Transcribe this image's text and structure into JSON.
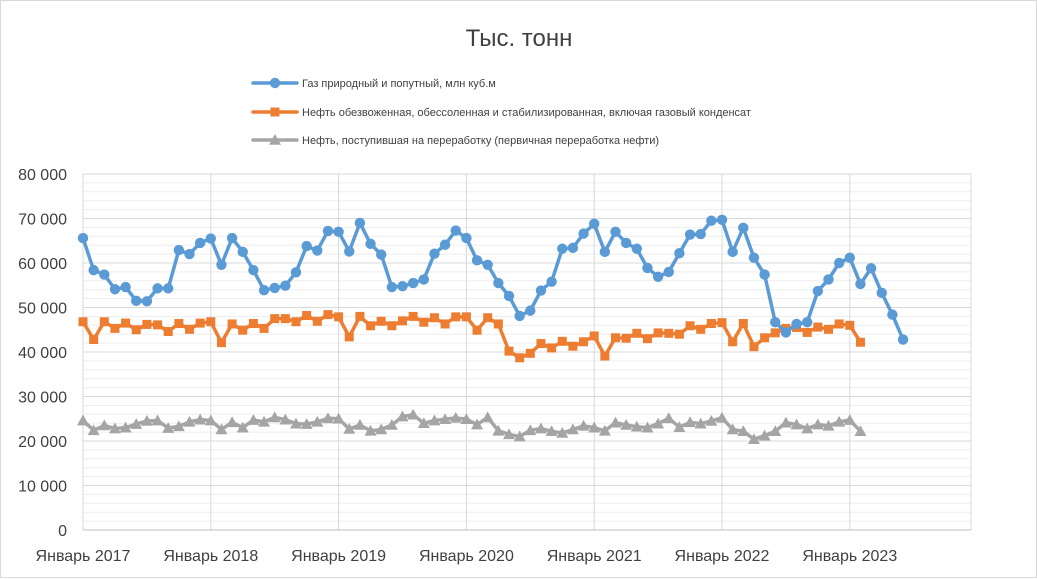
{
  "chart_data": {
    "type": "line",
    "title": "Тыс. тонн",
    "xlabel": "",
    "ylabel": "",
    "ylim": [
      0,
      80000
    ],
    "y_ticks": [
      0,
      10000,
      20000,
      30000,
      40000,
      50000,
      60000,
      70000,
      80000
    ],
    "y_tick_labels": [
      "0",
      "10 000",
      "20 000",
      "30 000",
      "40 000",
      "50 000",
      "60 000",
      "70 000",
      "80 000"
    ],
    "x_tick_labels": [
      "Январь 2017",
      "Январь 2018",
      "Январь 2019",
      "Январь 2020",
      "Январь 2021",
      "Январь 2022",
      "Январь 2023"
    ],
    "x_tick_month_index": [
      0,
      12,
      24,
      36,
      48,
      60,
      72
    ],
    "x_month_count": 84,
    "grid": true,
    "legend_position": "top",
    "series": [
      {
        "name": "Газ природный и попутный, млн куб.м",
        "color": "#5b9bd5",
        "marker": "circle",
        "start_month_index": 0,
        "values": [
          65600,
          58400,
          57400,
          54100,
          54600,
          51500,
          51400,
          54300,
          54300,
          62900,
          62000,
          64500,
          65500,
          59600,
          65600,
          62500,
          58400,
          53900,
          54400,
          54900,
          57900,
          63800,
          62800,
          67200,
          67000,
          62600,
          69000,
          64300,
          61900,
          54600,
          54800,
          55500,
          56300,
          62100,
          64100,
          67300,
          65600,
          60600,
          59600,
          55500,
          52600,
          48100,
          49300,
          53800,
          55800,
          63200,
          63400,
          66600,
          68800,
          62500,
          67000,
          64500,
          63200,
          58900,
          56900,
          58000,
          62200,
          66400,
          66500,
          69500,
          69700,
          62500,
          67900,
          61200,
          57400,
          46700,
          44400,
          46300,
          46700,
          53700,
          56300,
          60000,
          61200,
          55300,
          58800,
          53300,
          48400,
          42800
        ]
      },
      {
        "name": "Нефть обезвоженная, обессоленная и стабилизированная, включая газовый конденсат",
        "color": "#ed7d31",
        "marker": "square",
        "start_month_index": 0,
        "values": [
          46800,
          42800,
          46800,
          45300,
          46500,
          45000,
          46200,
          46100,
          44600,
          46400,
          45100,
          46500,
          46800,
          42100,
          46300,
          44900,
          46400,
          45300,
          47500,
          47500,
          46800,
          48200,
          46900,
          48400,
          47900,
          43400,
          48000,
          45900,
          46900,
          45900,
          47000,
          48000,
          46700,
          47700,
          46300,
          47900,
          47900,
          44900,
          47700,
          46300,
          40200,
          38700,
          39700,
          41900,
          40900,
          42400,
          41300,
          42300,
          43600,
          39100,
          43200,
          43100,
          44200,
          43000,
          44300,
          44200,
          44000,
          45900,
          45100,
          46400,
          46600,
          42300,
          46400,
          41200,
          43200,
          44300,
          45300,
          45500,
          44400,
          45600,
          45100,
          46300,
          46000,
          42200
        ]
      },
      {
        "name": "Нефть, поступившая на переработку (первичная переработка нефти)",
        "color": "#a5a5a5",
        "marker": "triangle",
        "start_month_index": 0,
        "values": [
          24600,
          22400,
          23500,
          22800,
          23000,
          23800,
          24500,
          24600,
          22900,
          23300,
          24300,
          24800,
          24600,
          22600,
          24200,
          23000,
          24700,
          24300,
          25300,
          24800,
          23900,
          23800,
          24300,
          25100,
          25000,
          22700,
          23600,
          22300,
          22600,
          23600,
          25500,
          25900,
          24000,
          24600,
          24900,
          25200,
          24900,
          23700,
          25300,
          22300,
          21500,
          21000,
          22400,
          22800,
          22200,
          21800,
          22600,
          23400,
          23000,
          22300,
          24100,
          23600,
          23200,
          23000,
          23900,
          25100,
          23100,
          24200,
          23900,
          24500,
          25200,
          22600,
          22200,
          20400,
          21200,
          22200,
          24100,
          23700,
          22800,
          23700,
          23400,
          24300,
          24700,
          22200
        ]
      }
    ]
  }
}
